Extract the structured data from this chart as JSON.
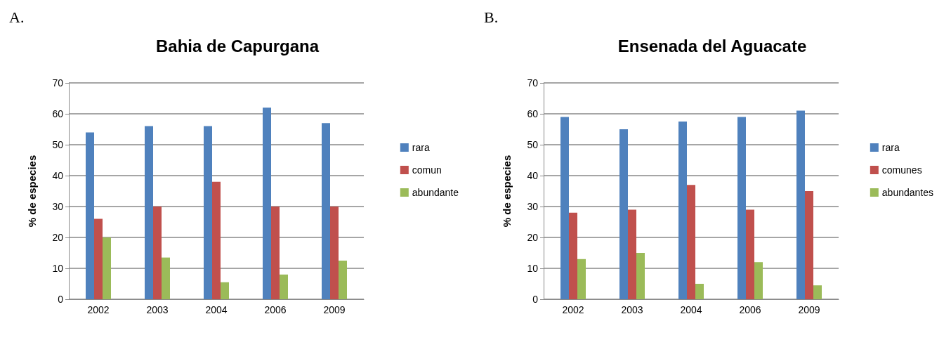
{
  "chart_data": [
    {
      "type": "bar",
      "title": "Bahia de Capurgana",
      "ylabel": "% de especies",
      "annotations": [
        "A."
      ],
      "categories": [
        "2002",
        "2003",
        "2004",
        "2006",
        "2009"
      ],
      "ylim": [
        0,
        70
      ],
      "yticks": [
        0,
        10,
        20,
        30,
        40,
        50,
        60,
        70
      ],
      "grid": "y",
      "legend": "right",
      "series": [
        {
          "name": "rara",
          "color": "#4f81bd",
          "values": [
            54,
            56,
            56,
            62,
            57
          ]
        },
        {
          "name": "comun",
          "color": "#c0504d",
          "values": [
            26,
            30,
            38,
            30,
            30
          ]
        },
        {
          "name": "abundante",
          "color": "#9bbb59",
          "values": [
            20,
            13.5,
            5.5,
            8,
            12.5
          ]
        }
      ]
    },
    {
      "type": "bar",
      "title": "Ensenada del Aguacate",
      "ylabel": "% de especies",
      "annotations": [
        "B."
      ],
      "categories": [
        "2002",
        "2003",
        "2004",
        "2006",
        "2009"
      ],
      "ylim": [
        0,
        70
      ],
      "yticks": [
        0,
        10,
        20,
        30,
        40,
        50,
        60,
        70
      ],
      "grid": "y",
      "legend": "right",
      "series": [
        {
          "name": "rara",
          "color": "#4f81bd",
          "values": [
            59,
            55,
            57.5,
            59,
            61
          ]
        },
        {
          "name": "comunes",
          "color": "#c0504d",
          "values": [
            28,
            29,
            37,
            29,
            35
          ]
        },
        {
          "name": "abundantes",
          "color": "#9bbb59",
          "values": [
            13,
            15,
            5,
            12,
            4.5
          ]
        }
      ]
    }
  ]
}
